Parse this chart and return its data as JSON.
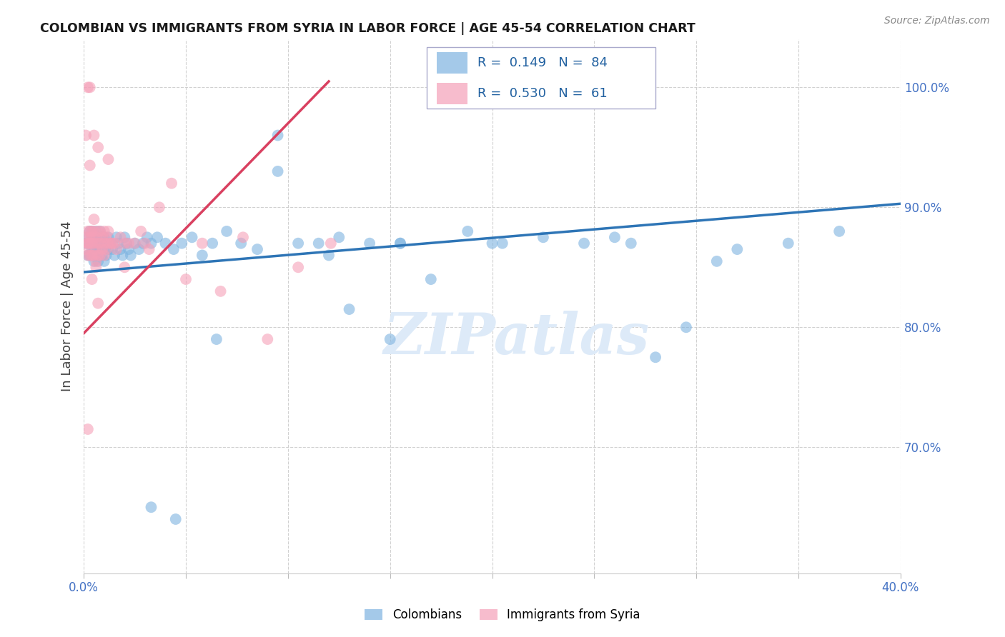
{
  "title": "COLOMBIAN VS IMMIGRANTS FROM SYRIA IN LABOR FORCE | AGE 45-54 CORRELATION CHART",
  "source": "Source: ZipAtlas.com",
  "ylabel": "In Labor Force | Age 45-54",
  "xlim": [
    0.0,
    0.4
  ],
  "ylim": [
    0.595,
    1.04
  ],
  "xticks": [
    0.0,
    0.05,
    0.1,
    0.15,
    0.2,
    0.25,
    0.3,
    0.35,
    0.4
  ],
  "xtick_labels": [
    "0.0%",
    "",
    "",
    "",
    "",
    "",
    "",
    "",
    "40.0%"
  ],
  "ytick_labels": [
    "100.0%",
    "90.0%",
    "80.0%",
    "70.0%"
  ],
  "ytick_values": [
    1.0,
    0.9,
    0.8,
    0.7
  ],
  "blue_color": "#7EB3E0",
  "pink_color": "#F5A0B8",
  "blue_line_color": "#2E75B6",
  "pink_line_color": "#D94060",
  "blue_label": "Colombians",
  "pink_label": "Immigrants from Syria",
  "legend_text_color": "#2060A0",
  "legend_R_blue": "0.149",
  "legend_N_blue": "84",
  "legend_R_pink": "0.530",
  "legend_N_pink": "61",
  "watermark": "ZIPatlas",
  "blue_dots_x": [
    0.001,
    0.002,
    0.002,
    0.003,
    0.003,
    0.003,
    0.004,
    0.004,
    0.004,
    0.005,
    0.005,
    0.005,
    0.006,
    0.006,
    0.006,
    0.007,
    0.007,
    0.007,
    0.008,
    0.008,
    0.008,
    0.009,
    0.009,
    0.01,
    0.01,
    0.01,
    0.011,
    0.011,
    0.012,
    0.012,
    0.013,
    0.014,
    0.015,
    0.016,
    0.017,
    0.018,
    0.019,
    0.02,
    0.021,
    0.022,
    0.023,
    0.025,
    0.027,
    0.029,
    0.031,
    0.033,
    0.036,
    0.04,
    0.044,
    0.048,
    0.053,
    0.058,
    0.063,
    0.07,
    0.077,
    0.085,
    0.095,
    0.105,
    0.115,
    0.125,
    0.14,
    0.155,
    0.17,
    0.188,
    0.205,
    0.225,
    0.245,
    0.268,
    0.295,
    0.32,
    0.345,
    0.37,
    0.155,
    0.31,
    0.2,
    0.26,
    0.13,
    0.15,
    0.28,
    0.12,
    0.095,
    0.065,
    0.045,
    0.033
  ],
  "blue_dots_y": [
    0.87,
    0.875,
    0.86,
    0.88,
    0.87,
    0.86,
    0.875,
    0.865,
    0.88,
    0.875,
    0.865,
    0.855,
    0.87,
    0.88,
    0.86,
    0.875,
    0.865,
    0.855,
    0.87,
    0.88,
    0.86,
    0.875,
    0.86,
    0.875,
    0.865,
    0.855,
    0.87,
    0.86,
    0.875,
    0.865,
    0.87,
    0.865,
    0.86,
    0.875,
    0.87,
    0.865,
    0.86,
    0.875,
    0.87,
    0.865,
    0.86,
    0.87,
    0.865,
    0.87,
    0.875,
    0.87,
    0.875,
    0.87,
    0.865,
    0.87,
    0.875,
    0.86,
    0.87,
    0.88,
    0.87,
    0.865,
    0.93,
    0.87,
    0.87,
    0.875,
    0.87,
    0.87,
    0.84,
    0.88,
    0.87,
    0.875,
    0.87,
    0.87,
    0.8,
    0.865,
    0.87,
    0.88,
    0.87,
    0.855,
    0.87,
    0.875,
    0.815,
    0.79,
    0.775,
    0.86,
    0.96,
    0.79,
    0.64,
    0.65
  ],
  "pink_dots_x": [
    0.001,
    0.001,
    0.002,
    0.002,
    0.002,
    0.003,
    0.003,
    0.003,
    0.003,
    0.004,
    0.004,
    0.004,
    0.004,
    0.005,
    0.005,
    0.005,
    0.006,
    0.006,
    0.006,
    0.007,
    0.007,
    0.007,
    0.008,
    0.008,
    0.008,
    0.009,
    0.009,
    0.01,
    0.01,
    0.01,
    0.011,
    0.011,
    0.012,
    0.012,
    0.013,
    0.014,
    0.015,
    0.016,
    0.018,
    0.02,
    0.022,
    0.025,
    0.028,
    0.032,
    0.037,
    0.043,
    0.05,
    0.058,
    0.067,
    0.078,
    0.09,
    0.105,
    0.121,
    0.001,
    0.002,
    0.003,
    0.004,
    0.005,
    0.006,
    0.007,
    0.002
  ],
  "pink_dots_y": [
    0.875,
    0.865,
    0.88,
    0.87,
    0.86,
    0.88,
    0.87,
    0.86,
    0.875,
    0.88,
    0.87,
    0.86,
    0.875,
    0.88,
    0.87,
    0.86,
    0.875,
    0.865,
    0.855,
    0.88,
    0.87,
    0.86,
    0.88,
    0.87,
    0.86,
    0.875,
    0.865,
    0.88,
    0.87,
    0.86,
    0.875,
    0.865,
    0.88,
    0.87,
    0.87,
    0.87,
    0.87,
    0.865,
    0.875,
    0.87,
    0.87,
    0.87,
    0.88,
    0.865,
    0.9,
    0.92,
    0.84,
    0.87,
    0.83,
    0.875,
    0.79,
    0.85,
    0.87,
    0.96,
    0.87,
    0.935,
    0.84,
    0.89,
    0.85,
    0.82,
    0.715
  ],
  "pink_extra_dots_x": [
    0.002,
    0.003,
    0.005,
    0.007,
    0.012,
    0.02,
    0.03
  ],
  "pink_extra_dots_y": [
    1.0,
    1.0,
    0.96,
    0.95,
    0.94,
    0.85,
    0.87
  ]
}
